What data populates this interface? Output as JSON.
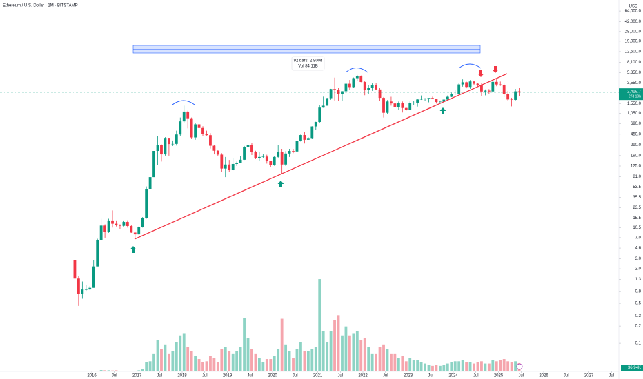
{
  "chart_data": {
    "type": "candlestick",
    "title": "Ethereum / U.S. Dollar · 1M · BITSTAMP",
    "currency": "USD",
    "log_scale": true,
    "grid": false,
    "up_color": "#089981",
    "down_color": "#f23645",
    "volume_up_color": "#8dd3c4",
    "volume_down_color": "#f5a5ad",
    "x": [
      "2015-08",
      "2015-09",
      "2015-10",
      "2015-11",
      "2015-12",
      "2016-01",
      "2016-02",
      "2016-03",
      "2016-04",
      "2016-05",
      "2016-06",
      "2016-07",
      "2016-08",
      "2016-09",
      "2016-10",
      "2016-11",
      "2016-12",
      "2017-01",
      "2017-02",
      "2017-03",
      "2017-04",
      "2017-05",
      "2017-06",
      "2017-07",
      "2017-08",
      "2017-09",
      "2017-10",
      "2017-11",
      "2017-12",
      "2018-01",
      "2018-02",
      "2018-03",
      "2018-04",
      "2018-05",
      "2018-06",
      "2018-07",
      "2018-08",
      "2018-09",
      "2018-10",
      "2018-11",
      "2018-12",
      "2019-01",
      "2019-02",
      "2019-03",
      "2019-04",
      "2019-05",
      "2019-06",
      "2019-07",
      "2019-08",
      "2019-09",
      "2019-10",
      "2019-11",
      "2019-12",
      "2020-01",
      "2020-02",
      "2020-03",
      "2020-04",
      "2020-05",
      "2020-06",
      "2020-07",
      "2020-08",
      "2020-09",
      "2020-10",
      "2020-11",
      "2020-12",
      "2021-01",
      "2021-02",
      "2021-03",
      "2021-04",
      "2021-05",
      "2021-06",
      "2021-07",
      "2021-08",
      "2021-09",
      "2021-10",
      "2021-11",
      "2021-12",
      "2022-01",
      "2022-02",
      "2022-03",
      "2022-04",
      "2022-05",
      "2022-06",
      "2022-07",
      "2022-08",
      "2022-09",
      "2022-10",
      "2022-11",
      "2022-12",
      "2023-01",
      "2023-02",
      "2023-03",
      "2023-04",
      "2023-05",
      "2023-06",
      "2023-07",
      "2023-08",
      "2023-09",
      "2023-10",
      "2023-11",
      "2023-12",
      "2024-01",
      "2024-02",
      "2024-03",
      "2024-04",
      "2024-05",
      "2024-06",
      "2024-07",
      "2024-08",
      "2024-09",
      "2024-10",
      "2024-11",
      "2024-12",
      "2025-01",
      "2025-02",
      "2025-03",
      "2025-04",
      "2025-05",
      "2025-06"
    ],
    "open": [
      2.8,
      1.35,
      0.73,
      0.87,
      0.87,
      0.93,
      2.2,
      6.4,
      11.4,
      8.8,
      14,
      12.3,
      11.7,
      11.3,
      13.2,
      11.2,
      8.6,
      8.0,
      10.7,
      15.6,
      50,
      80,
      230,
      290,
      200,
      388,
      303,
      305,
      445,
      755,
      1120,
      855,
      395,
      670,
      578,
      455,
      433,
      283,
      232,
      198,
      113,
      133,
      107,
      136,
      141,
      161,
      268,
      294,
      218,
      172,
      180,
      183,
      152,
      130,
      180,
      218,
      133,
      207,
      230,
      225,
      345,
      435,
      360,
      386,
      615,
      737,
      1314,
      1417,
      1918,
      2773,
      2707,
      2275,
      2536,
      3433,
      3000,
      4288,
      4631,
      3683,
      2688,
      2922,
      3282,
      2727,
      1942,
      1067,
      1680,
      1553,
      1328,
      1572,
      1295,
      1196,
      1585,
      1605,
      1822,
      1869,
      1874,
      1934,
      1856,
      1645,
      1671,
      1815,
      2028,
      2282,
      2283,
      3340,
      3645,
      3015,
      3762,
      3433,
      3232,
      2513,
      2603,
      2518,
      3705,
      3332,
      3300,
      2237,
      1822,
      1794,
      2530
    ],
    "high": [
      3.5,
      1.5,
      1.2,
      1.05,
      1.0,
      2.8,
      6.7,
      15,
      12,
      15,
      21,
      14,
      12,
      14,
      14.1,
      11.5,
      9.0,
      11,
      16,
      55,
      98,
      230,
      420,
      300,
      400,
      390,
      350,
      520,
      880,
      1420,
      1160,
      880,
      710,
      835,
      620,
      520,
      470,
      295,
      236,
      210,
      180,
      160,
      170,
      150,
      185,
      280,
      364,
      320,
      232,
      224,
      200,
      197,
      155,
      185,
      290,
      250,
      228,
      250,
      250,
      350,
      445,
      490,
      400,
      620,
      745,
      1475,
      2040,
      1945,
      2800,
      4380,
      2890,
      2550,
      3470,
      4000,
      4400,
      4880,
      4780,
      3880,
      3280,
      3480,
      3580,
      2950,
      2010,
      1780,
      2030,
      1790,
      1680,
      1680,
      1350,
      1680,
      1740,
      1860,
      2140,
      1930,
      1930,
      2040,
      1880,
      1750,
      1860,
      2140,
      2400,
      2720,
      3500,
      4095,
      3730,
      3975,
      3880,
      3560,
      3480,
      2730,
      2770,
      3740,
      4110,
      3750,
      3450,
      2550,
      1950,
      2790,
      2880
    ],
    "low": [
      0.6,
      0.45,
      0.6,
      0.8,
      0.85,
      0.93,
      2.2,
      6.4,
      7.0,
      8.5,
      10.5,
      11,
      10,
      11,
      10.5,
      8.5,
      6.7,
      7.9,
      10.5,
      15,
      40,
      80,
      130,
      150,
      190,
      190,
      280,
      285,
      420,
      720,
      570,
      370,
      360,
      560,
      415,
      425,
      253,
      200,
      185,
      100,
      80,
      100,
      105,
      125,
      140,
      160,
      235,
      195,
      165,
      155,
      172,
      138,
      120,
      126,
      175,
      90,
      125,
      180,
      210,
      225,
      335,
      310,
      365,
      375,
      535,
      710,
      1300,
      1420,
      1800,
      1750,
      1700,
      1720,
      2460,
      2650,
      2950,
      3900,
      3650,
      2160,
      2300,
      2580,
      2700,
      1720,
      880,
      1000,
      1420,
      1220,
      1200,
      1080,
      1160,
      1190,
      1460,
      1370,
      1790,
      1730,
      1625,
      1840,
      1550,
      1530,
      1530,
      1800,
      2000,
      2170,
      2250,
      3050,
      2860,
      2800,
      3300,
      3080,
      2110,
      2150,
      2300,
      2360,
      3100,
      3150,
      2000,
      1750,
      1380,
      1750,
      2120
    ],
    "close": [
      1.35,
      0.73,
      0.87,
      0.87,
      0.93,
      2.2,
      6.4,
      11.4,
      8.8,
      14,
      12.3,
      11.7,
      11.3,
      13.2,
      11.2,
      8.6,
      8.0,
      10.7,
      15.6,
      50,
      80,
      230,
      290,
      200,
      388,
      303,
      305,
      445,
      755,
      1120,
      855,
      395,
      670,
      578,
      455,
      433,
      283,
      232,
      198,
      113,
      133,
      107,
      136,
      141,
      161,
      268,
      294,
      218,
      172,
      180,
      183,
      152,
      130,
      180,
      218,
      133,
      207,
      230,
      225,
      345,
      435,
      360,
      386,
      615,
      737,
      1314,
      1417,
      1918,
      2773,
      2707,
      2275,
      2536,
      3433,
      3000,
      4288,
      4631,
      3683,
      2688,
      2922,
      3282,
      2727,
      1942,
      1067,
      1680,
      1553,
      1328,
      1572,
      1295,
      1196,
      1585,
      1605,
      1822,
      1869,
      1874,
      1934,
      1856,
      1645,
      1671,
      1815,
      2028,
      2282,
      2283,
      3340,
      3645,
      3015,
      3762,
      3433,
      3232,
      2513,
      2603,
      2518,
      3705,
      3332,
      3300,
      2237,
      1822,
      1794,
      2530,
      2419.7
    ],
    "volume": [
      0.5,
      0.8,
      0.5,
      0.4,
      0.4,
      1,
      3,
      6,
      5,
      5,
      4,
      5,
      3,
      3,
      2,
      2,
      3,
      5,
      10,
      40,
      45,
      80,
      140,
      100,
      120,
      80,
      90,
      130,
      160,
      170,
      110,
      90,
      70,
      55,
      40,
      45,
      70,
      60,
      40,
      100,
      110,
      90,
      80,
      90,
      110,
      237,
      150,
      100,
      80,
      60,
      40,
      55,
      55,
      70,
      100,
      234,
      120,
      90,
      60,
      100,
      130,
      90,
      90,
      100,
      110,
      410,
      180,
      130,
      180,
      228,
      250,
      160,
      200,
      160,
      170,
      180,
      140,
      150,
      110,
      80,
      80,
      110,
      120,
      100,
      80,
      80,
      60,
      70,
      45,
      60,
      50,
      50,
      40,
      35,
      30,
      25,
      30,
      25,
      30,
      35,
      40,
      45,
      45,
      50,
      40,
      40,
      35,
      40,
      45,
      35,
      35,
      50,
      45,
      50,
      55,
      45,
      40,
      45,
      36.94
    ],
    "volume_axis": "y2",
    "xlim": [
      "2014-01",
      "2028-01"
    ],
    "ylim": [
      0.03,
      100000
    ],
    "y2lim": [
      0,
      1650
    ],
    "xticks": [
      {
        "value": "2016-01",
        "label": "2016"
      },
      {
        "value": "2016-07",
        "label": "Jul"
      },
      {
        "value": "2017-01",
        "label": "2017"
      },
      {
        "value": "2017-07",
        "label": "Jul"
      },
      {
        "value": "2018-01",
        "label": "2018"
      },
      {
        "value": "2018-07",
        "label": "Jul"
      },
      {
        "value": "2019-01",
        "label": "2019"
      },
      {
        "value": "2019-07",
        "label": "Jul"
      },
      {
        "value": "2020-01",
        "label": "2020"
      },
      {
        "value": "2020-07",
        "label": "Jul"
      },
      {
        "value": "2021-01",
        "label": "2021"
      },
      {
        "value": "2021-07",
        "label": "Jul"
      },
      {
        "value": "2022-01",
        "label": "2022"
      },
      {
        "value": "2022-07",
        "label": "Jul"
      },
      {
        "value": "2023-01",
        "label": "2023"
      },
      {
        "value": "2023-07",
        "label": "Jul"
      },
      {
        "value": "2024-01",
        "label": "2024"
      },
      {
        "value": "2024-07",
        "label": "Jul"
      },
      {
        "value": "2025-01",
        "label": "2025"
      },
      {
        "value": "2025-07",
        "label": "Jul"
      },
      {
        "value": "2026-01",
        "label": "2026"
      },
      {
        "value": "2026-07",
        "label": "Jul"
      },
      {
        "value": "2027-01",
        "label": "2027"
      },
      {
        "value": "2027-07",
        "label": "Jul"
      }
    ],
    "yticks": [
      {
        "value": 64000,
        "label": "64,000.0"
      },
      {
        "value": 42000,
        "label": "42,000.0"
      },
      {
        "value": 28000,
        "label": "28,000.0"
      },
      {
        "value": 19000,
        "label": "19,000.0"
      },
      {
        "value": 12500,
        "label": "12,500.0"
      },
      {
        "value": 8100,
        "label": "8,100.0"
      },
      {
        "value": 5350,
        "label": "5,350.0"
      },
      {
        "value": 3550,
        "label": "3,550.0"
      },
      {
        "value": 1550,
        "label": "1,550.0"
      },
      {
        "value": 1050,
        "label": "1,050.0"
      },
      {
        "value": 690,
        "label": "690.0"
      },
      {
        "value": 450,
        "label": "450.0"
      },
      {
        "value": 290,
        "label": "290.0"
      },
      {
        "value": 190,
        "label": "190.0"
      },
      {
        "value": 125,
        "label": "125.0"
      },
      {
        "value": 81,
        "label": "81.0"
      },
      53.5,
      35.5,
      23.5,
      15.5,
      10.5,
      {
        "value": 7,
        "label": "7.0"
      },
      4.6,
      {
        "value": 3,
        "label": "3.0"
      },
      {
        "value": 2,
        "label": "2.0"
      },
      1.3,
      0.8,
      0.5,
      0.3,
      0.2,
      0.1
    ],
    "last_price": {
      "value": 2419.7,
      "label": "2,419.7"
    },
    "countdown": "27d 10h",
    "last_volume": {
      "value": 36.94,
      "label": "36.94K"
    },
    "annotations": {
      "range_bars": "92 bars, 2,800d",
      "range_volume": "Vol 84.11B"
    }
  }
}
